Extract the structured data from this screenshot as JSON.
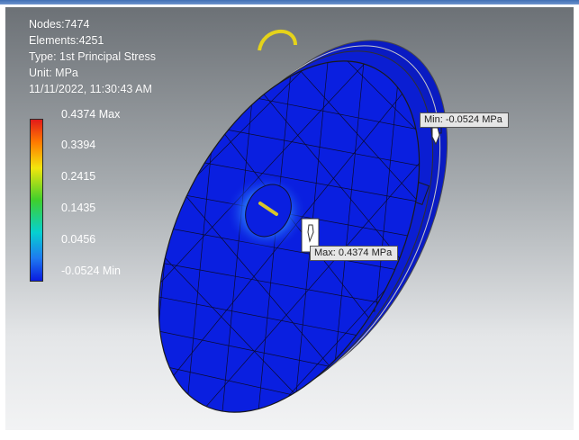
{
  "info": {
    "nodes": "Nodes:7474",
    "elements": "Elements:4251",
    "type": "Type: 1st Principal Stress",
    "unit": "Unit: MPa",
    "timestamp": "11/11/2022, 11:30:43 AM"
  },
  "legend": {
    "max": "0.4374 Max",
    "v1": "0.3394",
    "v2": "0.2415",
    "v3": "0.1435",
    "v4": "0.0456",
    "min": "-0.0524 Min"
  },
  "probes": {
    "min_label": "Min: -0.0524 MPa",
    "max_label": "Max: 0.4374 MPa"
  },
  "colors": {
    "mesh_fill": "#0a1fe0",
    "mesh_line": "#0b0b2e",
    "handle": "#e5d31a"
  }
}
